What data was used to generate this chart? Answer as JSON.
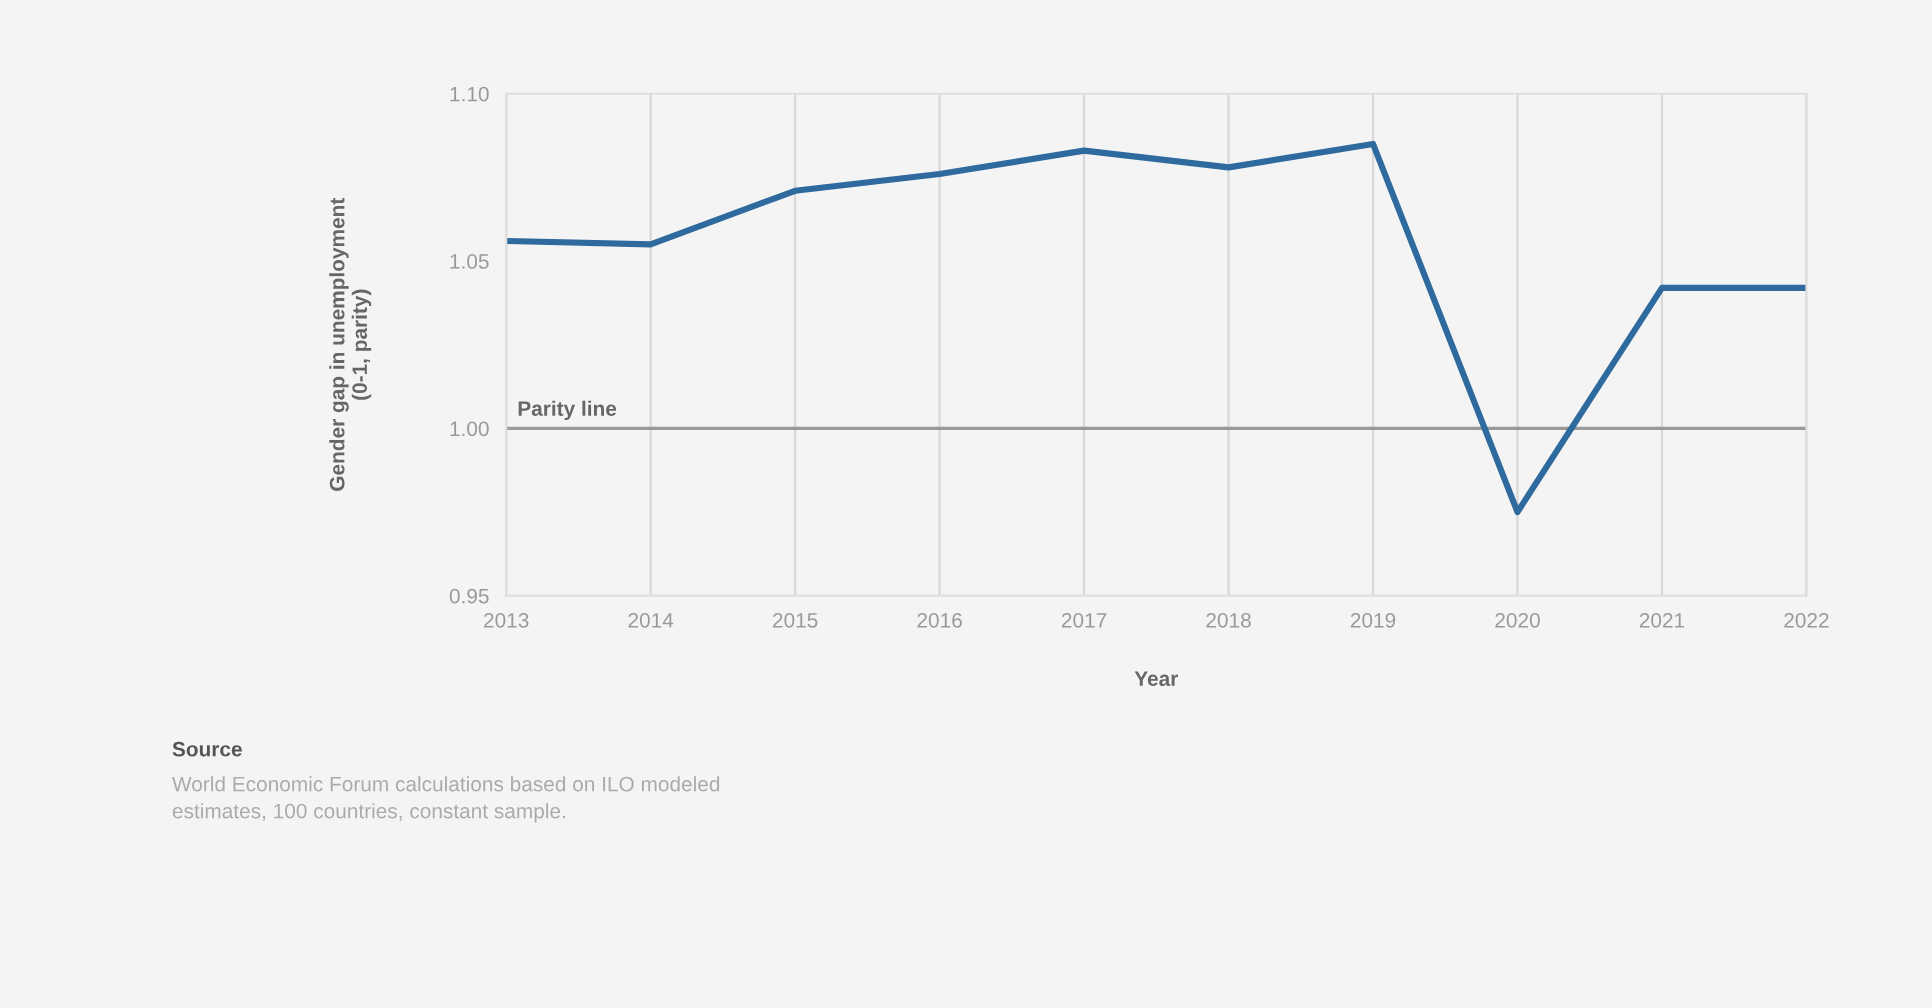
{
  "chart_data": {
    "type": "line",
    "x": [
      2013,
      2014,
      2015,
      2016,
      2017,
      2018,
      2019,
      2020,
      2021,
      2022
    ],
    "series": [
      {
        "color": "#2f6a9f",
        "values": [
          1.056,
          1.055,
          1.071,
          1.076,
          1.083,
          1.078,
          1.085,
          0.975,
          1.042,
          1.042
        ]
      }
    ],
    "xlabel": "Year",
    "ylabel": "Gender gap in unemployment\n(0-1, parity)",
    "xlim": [
      2013,
      2022
    ],
    "xticks": [
      2013,
      2014,
      2015,
      2016,
      2017,
      2018,
      2019,
      2020,
      2021,
      2022
    ],
    "ylim": [
      0.95,
      1.1
    ],
    "yticks": [
      {
        "value": 0.95,
        "label": "0.95"
      },
      {
        "value": 1.0,
        "label": "1.00"
      },
      {
        "value": 1.05,
        "label": "1.05"
      },
      {
        "value": 1.1,
        "label": "1.10"
      }
    ],
    "ref_lines": [
      {
        "axis": "y",
        "value": 1.0,
        "label": "Parity line",
        "color": "#999999"
      }
    ],
    "grid": "x",
    "marker": "none",
    "line_style": "solid",
    "legend": false,
    "annotations": [
      "Source",
      "World Economic Forum calculations based on ILO modeled\nestimates, 100 countries, constant sample."
    ]
  }
}
